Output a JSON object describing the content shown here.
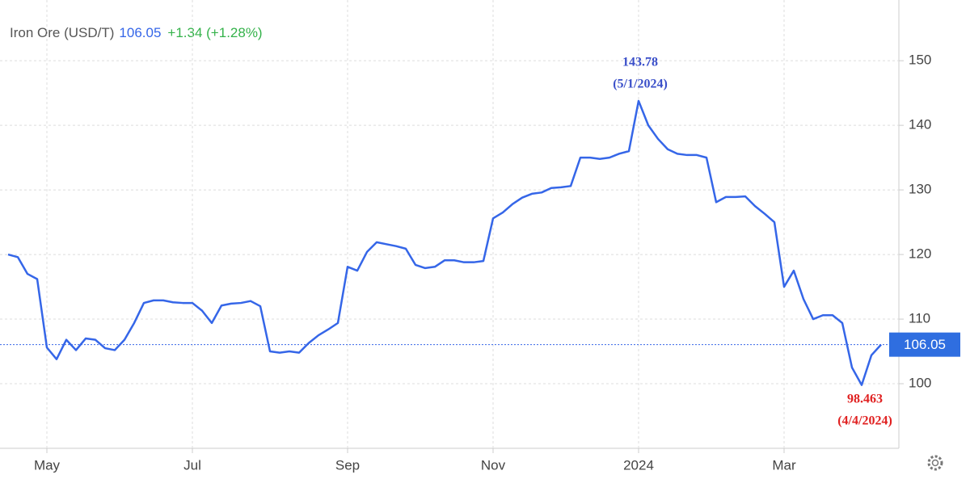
{
  "chart_data": {
    "type": "line",
    "title": "Iron Ore (USD/T)",
    "last_value": 106.05,
    "change": "+1.34 (+1.28%)",
    "annotations": [
      {
        "value": "143.78",
        "date": "(5/1/2024)",
        "color": "#3a4fc9"
      },
      {
        "value": "98.463",
        "date": "(4/4/2024)",
        "color": "#e02020"
      }
    ],
    "categories": [
      null,
      null,
      null,
      null,
      "May",
      null,
      null,
      null,
      null,
      null,
      null,
      null,
      null,
      null,
      null,
      null,
      null,
      null,
      null,
      "Jul",
      null,
      null,
      null,
      null,
      null,
      null,
      null,
      null,
      null,
      null,
      null,
      null,
      null,
      null,
      null,
      "Sep",
      null,
      null,
      null,
      null,
      null,
      null,
      null,
      null,
      null,
      null,
      null,
      null,
      null,
      null,
      "Nov",
      null,
      null,
      null,
      null,
      null,
      null,
      null,
      null,
      null,
      null,
      null,
      null,
      null,
      null,
      "2024",
      null,
      null,
      null,
      null,
      null,
      null,
      null,
      null,
      null,
      null,
      null,
      null,
      null,
      null,
      "Mar",
      null,
      null,
      null,
      null,
      null,
      null,
      null,
      null,
      null,
      null
    ],
    "series": [
      {
        "name": "Iron Ore",
        "color": "#3566e8",
        "values": [
          120,
          119.6,
          117,
          116.2,
          105.6,
          103.8,
          106.8,
          105.2,
          107,
          106.8,
          105.5,
          105.2,
          106.8,
          109.4,
          112.5,
          112.9,
          112.9,
          112.6,
          112.5,
          112.5,
          111.3,
          109.4,
          112.1,
          112.4,
          112.5,
          112.8,
          112,
          105,
          104.8,
          105,
          104.8,
          106.3,
          107.5,
          108.4,
          109.4,
          118.1,
          117.5,
          120.4,
          121.9,
          121.6,
          121.3,
          120.9,
          118.4,
          117.9,
          118.1,
          119.1,
          119.1,
          118.8,
          118.8,
          119,
          125.6,
          126.5,
          127.8,
          128.8,
          129.4,
          129.6,
          130.3,
          130.4,
          130.6,
          135,
          135,
          134.8,
          135,
          135.6,
          136,
          143.78,
          140,
          137.9,
          136.3,
          135.6,
          135.4,
          135.4,
          135,
          128.1,
          128.9,
          128.9,
          129,
          127.5,
          126.3,
          125,
          115,
          117.5,
          113.1,
          110,
          110.6,
          110.6,
          109.4,
          102.5,
          99.8,
          104.4,
          106.05
        ]
      }
    ],
    "ylim": [
      90,
      159.4
    ],
    "yticks": [
      100,
      110,
      120,
      130,
      140,
      150
    ],
    "grid": true
  }
}
